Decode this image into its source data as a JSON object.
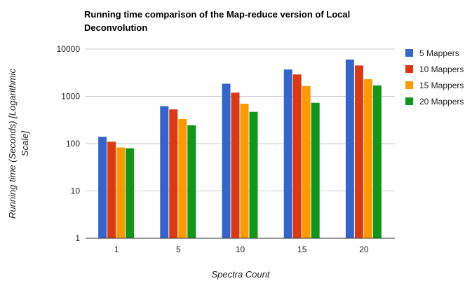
{
  "chart_data": {
    "type": "bar",
    "title_lines": [
      "Running time comparison of the Map-reduce version of Local",
      "Deconvolution"
    ],
    "xlabel": "Spectra Count",
    "ylabel_lines": [
      "Running time (Seconds) [Logarithmic",
      "Scale]"
    ],
    "y_scale": "log",
    "ylim": [
      1,
      10000
    ],
    "y_ticks": [
      {
        "value": 1,
        "label": "1"
      },
      {
        "value": 10,
        "label": "10"
      },
      {
        "value": 100,
        "label": "100"
      },
      {
        "value": 1000,
        "label": "1000"
      },
      {
        "value": 10000,
        "label": "10000"
      }
    ],
    "categories": [
      "1",
      "5",
      "10",
      "15",
      "20"
    ],
    "series": [
      {
        "name": "5 Mappers",
        "color": "#3366cc",
        "values": [
          140,
          620,
          1850,
          3700,
          6000
        ]
      },
      {
        "name": "10 Mappers",
        "color": "#dc3912",
        "values": [
          110,
          530,
          1200,
          2900,
          4500
        ]
      },
      {
        "name": "15 Mappers",
        "color": "#ff9900",
        "values": [
          83,
          330,
          700,
          1650,
          2300
        ]
      },
      {
        "name": "20 Mappers",
        "color": "#109618",
        "values": [
          80,
          245,
          470,
          730,
          1700
        ]
      }
    ],
    "grid": true,
    "legend_position": "right"
  }
}
